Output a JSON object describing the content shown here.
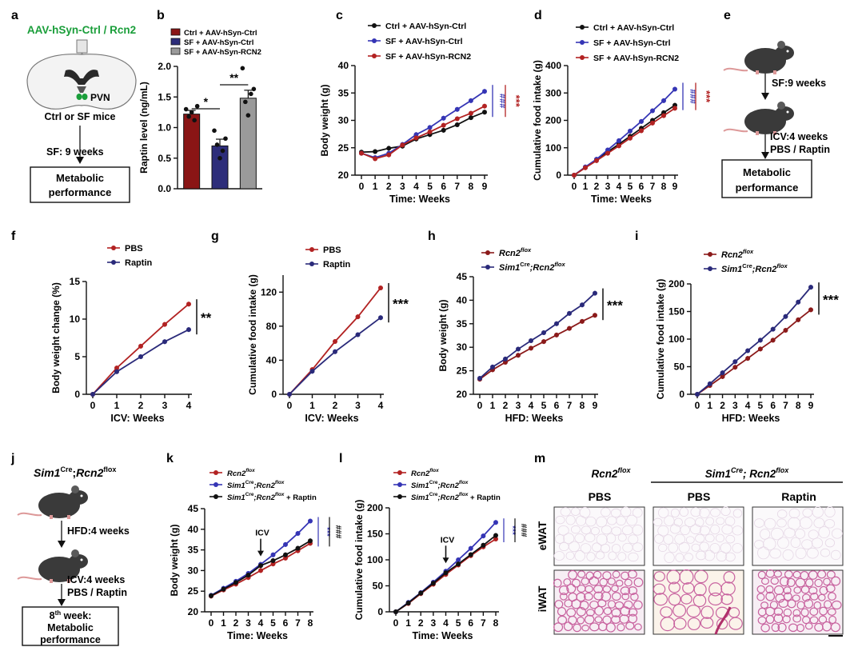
{
  "colors": {
    "black": "#111111",
    "blue": "#3535b5",
    "red": "#b22222",
    "maroon": "#8b1a1a",
    "navy": "#2a2a7a",
    "grey": "#999999",
    "green": "#1a9e3a",
    "mouse": "#3a3a3a",
    "tissue_pink": "#d98cb5"
  },
  "panel_a": {
    "letter": "a",
    "title": "AAV-hSyn-Ctrl / Rcn2",
    "pvn": "PVN",
    "mice": "Ctrl or SF mice",
    "sf": "SF: 9 weeks",
    "box": [
      "Metabolic",
      "performance"
    ]
  },
  "panel_e": {
    "letter": "e",
    "step1": "SF:9 weeks",
    "step2a": "ICV:4 weeks",
    "step2b": "PBS / Raptin",
    "box": [
      "Metabolic",
      "performance"
    ]
  },
  "panel_j": {
    "letter": "j",
    "title_italic": "Sim1",
    "title_sup1": "Cre",
    "title_mid": ";",
    "title_italic2": "Rcn2",
    "title_sup2": "flox",
    "step1": "HFD:4 weeks",
    "step2a": "ICV:4 weeks",
    "step2b": "PBS / Raptin",
    "box_a": "8",
    "box_sup": "th",
    "box_b": " week:",
    "box_c": "Metabolic",
    "box_d": "performance"
  },
  "panel_m": {
    "letter": "m",
    "group1": "Rcn2",
    "group1_sup": "flox",
    "group2_a": "Sim1",
    "group2_sup1": "Cre",
    "group2_b": "; Rcn2",
    "group2_sup2": "flox",
    "cols": [
      "PBS",
      "PBS",
      "Raptin"
    ],
    "rows": [
      "eWAT",
      "iWAT"
    ]
  },
  "chart_data": [
    {
      "id": "b",
      "letter": "b",
      "type": "bar",
      "ylabel": "Raptin level (ng/mL)",
      "ylim": [
        0,
        2.0
      ],
      "yticks": [
        "0.0",
        "0.5",
        "1.0",
        "1.5",
        "2.0"
      ],
      "legend": [
        "Ctrl + AAV-hSyn-Ctrl",
        "SF + AAV-hSyn-Ctrl",
        "SF + AAV-hSyn-RCN2"
      ],
      "values": [
        1.22,
        0.7,
        1.48
      ],
      "errors": [
        0.06,
        0.11,
        0.13
      ],
      "points": [
        [
          1.3,
          1.18,
          1.25,
          1.12,
          1.35
        ],
        [
          0.95,
          0.72,
          0.5,
          0.62,
          0.82
        ],
        [
          1.97,
          1.42,
          1.2,
          1.55,
          1.63
        ]
      ],
      "sig": [
        "*",
        "**"
      ]
    },
    {
      "id": "c",
      "letter": "c",
      "type": "line",
      "xlabel": "Time: Weeks",
      "ylabel": "Body weight (g)",
      "x": [
        0,
        1,
        2,
        3,
        4,
        5,
        6,
        7,
        8,
        9
      ],
      "ylim": [
        20,
        40
      ],
      "yticks": [
        "20",
        "25",
        "30",
        "35",
        "40"
      ],
      "series": [
        {
          "name": "Ctrl + AAV-hSyn-Ctrl",
          "values": [
            24.2,
            24.3,
            24.9,
            25.3,
            26.6,
            27.4,
            28.2,
            29.2,
            30.5,
            31.5
          ]
        },
        {
          "name": "SF + AAV-hSyn-Ctrl",
          "values": [
            24.0,
            23.2,
            24.0,
            25.6,
            27.4,
            28.7,
            30.4,
            32.0,
            33.6,
            35.3
          ]
        },
        {
          "name": "SF + AAV-hSyn-RCN2",
          "values": [
            24.0,
            23.0,
            23.7,
            25.5,
            26.8,
            27.9,
            29.1,
            30.3,
            31.3,
            32.6
          ]
        }
      ],
      "sig": [
        "###",
        "***"
      ]
    },
    {
      "id": "d",
      "letter": "d",
      "type": "line",
      "xlabel": "Time: Weeks",
      "ylabel": "Cumulative food intake (g)",
      "x": [
        0,
        1,
        2,
        3,
        4,
        5,
        6,
        7,
        8,
        9
      ],
      "ylim": [
        0,
        400
      ],
      "yticks": [
        "0",
        "100",
        "200",
        "300",
        "400"
      ],
      "series": [
        {
          "name": "Ctrl + AAV-hSyn-Ctrl",
          "values": [
            0,
            28,
            57,
            85,
            113,
            142,
            171,
            200,
            228,
            255
          ]
        },
        {
          "name": "SF + AAV-hSyn-Ctrl",
          "values": [
            0,
            30,
            58,
            92,
            126,
            161,
            196,
            235,
            272,
            314
          ]
        },
        {
          "name": "SF + AAV-hSyn-RCN2",
          "values": [
            0,
            27,
            53,
            80,
            107,
            135,
            162,
            190,
            217,
            244
          ]
        }
      ],
      "sig": [
        "###",
        "***"
      ]
    },
    {
      "id": "f",
      "letter": "f",
      "type": "line",
      "xlabel": "ICV: Weeks",
      "ylabel": "Body weight change (%)",
      "x": [
        0,
        1,
        2,
        3,
        4
      ],
      "ylim": [
        0,
        15
      ],
      "yticks": [
        "0",
        "5",
        "10",
        "15"
      ],
      "series": [
        {
          "name": "PBS",
          "values": [
            0,
            3.5,
            6.4,
            9.3,
            12.0
          ]
        },
        {
          "name": "Raptin",
          "values": [
            0,
            3.0,
            5.0,
            7.0,
            8.6
          ]
        }
      ],
      "sig": [
        "**"
      ]
    },
    {
      "id": "g",
      "letter": "g",
      "type": "line",
      "xlabel": "ICV: Weeks",
      "ylabel": "Cumulative food intake (g)",
      "x": [
        0,
        1,
        2,
        3,
        4
      ],
      "ylim": [
        0,
        140
      ],
      "yticks": [
        "0",
        "40",
        "80",
        "120"
      ],
      "series": [
        {
          "name": "PBS",
          "values": [
            0,
            29,
            62,
            91,
            125
          ]
        },
        {
          "name": "Raptin",
          "values": [
            0,
            27,
            50,
            70,
            90
          ]
        }
      ],
      "sig": [
        "***"
      ]
    },
    {
      "id": "h",
      "letter": "h",
      "type": "line",
      "xlabel": "HFD: Weeks",
      "ylabel": "Body weight (g)",
      "x": [
        0,
        1,
        2,
        3,
        4,
        5,
        6,
        7,
        8,
        9
      ],
      "ylim": [
        20,
        45
      ],
      "yticks": [
        "20",
        "25",
        "30",
        "35",
        "40",
        "45"
      ],
      "series": [
        {
          "name": "Rcn2flox",
          "values": [
            23.2,
            25.2,
            26.8,
            28.3,
            29.8,
            31.2,
            32.6,
            34.0,
            35.5,
            36.8
          ]
        },
        {
          "name": "Sim1Cre;Rcn2flox",
          "values": [
            23.4,
            25.8,
            27.5,
            29.6,
            31.4,
            33.1,
            35.0,
            37.2,
            39.0,
            41.5
          ]
        }
      ],
      "sig": [
        "***"
      ]
    },
    {
      "id": "i",
      "letter": "i",
      "type": "line",
      "xlabel": "HFD: Weeks",
      "ylabel": "Cumulative food intake (g)",
      "x": [
        0,
        1,
        2,
        3,
        4,
        5,
        6,
        7,
        8,
        9
      ],
      "ylim": [
        0,
        200
      ],
      "yticks": [
        "0",
        "50",
        "100",
        "150",
        "200"
      ],
      "series": [
        {
          "name": "Rcn2flox",
          "values": [
            0,
            16,
            32,
            49,
            65,
            82,
            98,
            116,
            135,
            153
          ]
        },
        {
          "name": "Sim1Cre;Rcn2flox",
          "values": [
            0,
            19,
            39,
            59,
            79,
            98,
            118,
            141,
            167,
            194
          ]
        }
      ],
      "sig": [
        "***"
      ]
    },
    {
      "id": "k",
      "letter": "k",
      "type": "line",
      "xlabel": "Time: Weeks",
      "ylabel": "Body weight (g)",
      "x": [
        0,
        1,
        2,
        3,
        4,
        5,
        6,
        7,
        8
      ],
      "ylim": [
        20,
        45
      ],
      "yticks": [
        "20",
        "25",
        "30",
        "35",
        "40",
        "45"
      ],
      "series": [
        {
          "name": "Rcn2flox",
          "values": [
            23.8,
            25.3,
            26.7,
            28.3,
            30.0,
            31.6,
            33.0,
            34.8,
            36.6
          ]
        },
        {
          "name": "Sim1Cre;Rcn2flox",
          "values": [
            24.0,
            25.7,
            27.4,
            29.3,
            31.5,
            33.8,
            36.3,
            39.0,
            42.0
          ]
        },
        {
          "name": "Sim1Cre;Rcn2flox + Raptin",
          "values": [
            23.9,
            25.5,
            27.1,
            28.9,
            31.2,
            32.4,
            33.8,
            35.4,
            37.2
          ]
        }
      ],
      "annotation": "ICV",
      "annotation_x": 4,
      "sig": [
        "***",
        "###"
      ]
    },
    {
      "id": "l",
      "letter": "l",
      "type": "line",
      "xlabel": "Time: Weeks",
      "ylabel": "Cumulative food intake (g)",
      "x": [
        0,
        1,
        2,
        3,
        4,
        5,
        6,
        7,
        8
      ],
      "ylim": [
        0,
        200
      ],
      "yticks": [
        "0",
        "50",
        "100",
        "150",
        "200"
      ],
      "series": [
        {
          "name": "Rcn2flox",
          "values": [
            0,
            16,
            35,
            53,
            72,
            90,
            108,
            125,
            140
          ]
        },
        {
          "name": "Sim1Cre;Rcn2flox",
          "values": [
            0,
            18,
            37,
            57,
            78,
            100,
            122,
            146,
            172
          ]
        },
        {
          "name": "Sim1Cre;Rcn2flox + Raptin",
          "values": [
            0,
            17,
            36,
            55,
            75,
            92,
            110,
            128,
            147
          ]
        }
      ],
      "annotation": "ICV",
      "annotation_x": 4,
      "sig": [
        "***",
        "###"
      ]
    }
  ]
}
